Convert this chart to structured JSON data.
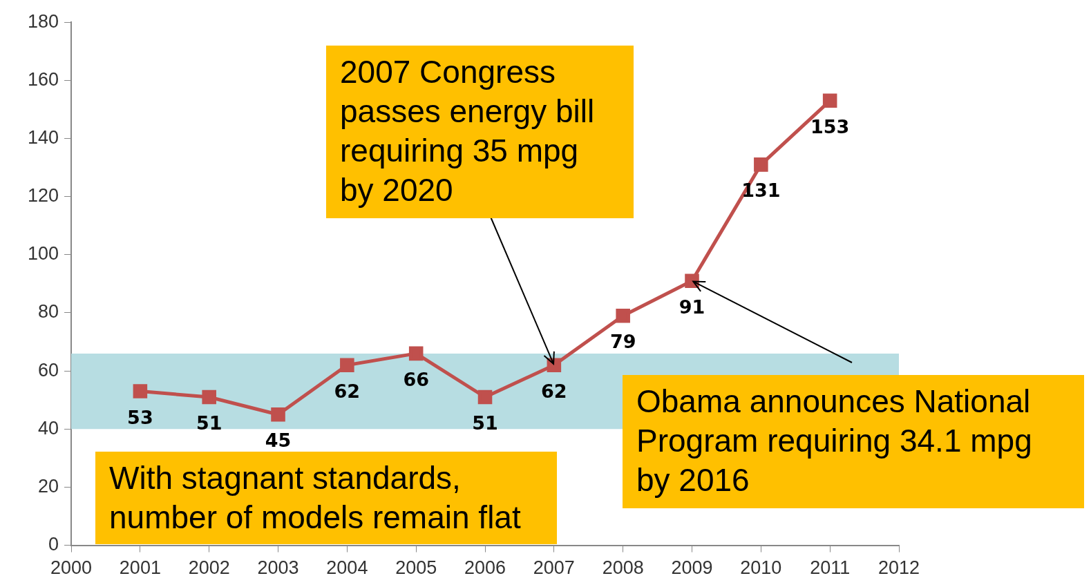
{
  "chart_data": {
    "type": "line",
    "x": [
      2001,
      2002,
      2003,
      2004,
      2005,
      2006,
      2007,
      2008,
      2009,
      2010,
      2011
    ],
    "series": [
      {
        "color": "#c0504d",
        "values": [
          53,
          51,
          45,
          62,
          66,
          51,
          62,
          79,
          91,
          131,
          153
        ]
      }
    ],
    "xlim": [
      2000,
      2012
    ],
    "xticks": [
      2000,
      2001,
      2002,
      2003,
      2004,
      2005,
      2006,
      2007,
      2008,
      2009,
      2010,
      2011,
      2012
    ],
    "ylim": [
      0,
      180
    ],
    "yticks": [
      0,
      20,
      40,
      60,
      80,
      100,
      120,
      140,
      160,
      180
    ],
    "marker": "square",
    "line_style": "solid",
    "data_labels": true,
    "bands": [
      {
        "axis": "y",
        "from": 40,
        "to": 66,
        "color": "#b7dde2"
      }
    ],
    "annotations": [
      {
        "text": "2007 Congress passes energy bill requiring 35 mpg by 2020",
        "x": 2007,
        "y": 62
      },
      {
        "text": "Obama announces National Program requiring 34.1 mpg by 2016",
        "x": 2009,
        "y": 91
      },
      "With stagnant standards, number of models remain flat"
    ]
  }
}
